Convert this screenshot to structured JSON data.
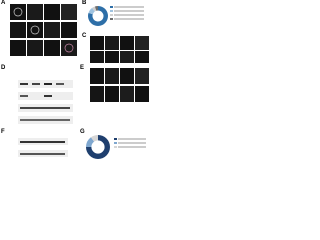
{
  "panel_labels": [
    "A",
    "B",
    "C",
    "D",
    "E",
    "F",
    "G"
  ],
  "donuts": [
    {
      "values": [
        80,
        10,
        5,
        5
      ],
      "colors": [
        "#2e6fa8",
        "#9fc3e0",
        "#d0d0d0",
        "#6e6e6e"
      ]
    },
    {
      "values": [
        75,
        15,
        10
      ],
      "colors": [
        "#1f3f6e",
        "#7fa7cf",
        "#d6d6d6"
      ]
    }
  ]
}
